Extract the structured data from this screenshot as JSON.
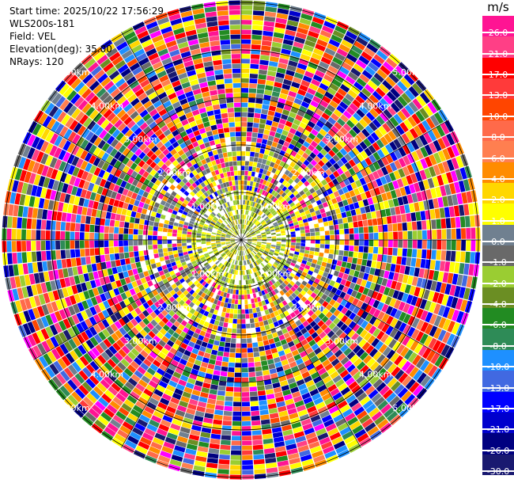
{
  "header": {
    "start_time": "Start time: 2025/10/22 17:56:29",
    "instrument": "WLS200s-181",
    "field": "Field: VEL",
    "elevation": "Elevation(deg): 35.00",
    "nrays": "NRays: 120"
  },
  "range_rings": {
    "inner_labels": [
      "1.00km",
      "1.00km",
      "1.00km",
      "1.00km"
    ],
    "ring2_labels": [
      "2.00km",
      "2.00km",
      "2.00km",
      "2.00km"
    ],
    "ring3_labels": [
      "3.00km",
      "3.00km",
      "3.00km",
      "3.00km"
    ],
    "ring4_labels": [
      "4.00km",
      "4.00km",
      "4.00km",
      "4.00km"
    ],
    "ring5_labels": [
      "5.00km",
      "5.00km",
      "5.00km",
      "5.00km"
    ],
    "ring_km": [
      1,
      2,
      3,
      4,
      5
    ]
  },
  "colorbar": {
    "unit": "m/s",
    "levels": [
      "26.0",
      "21.0",
      "17.0",
      "13.0",
      "10.0",
      "8.0",
      "6.0",
      "4.0",
      "2.0",
      "1.0",
      "0.0",
      "-1.0",
      "-2.0",
      "-4.0",
      "-6.0",
      "-8.0",
      "-10.0",
      "-13.0",
      "-17.0",
      "-21.0",
      "-26.0",
      "-30.0"
    ],
    "colors": [
      "#ff1493",
      "#ff3f86",
      "#ff0000",
      "#ff3a3a",
      "#ff4500",
      "#ff6a4a",
      "#ff7f50",
      "#ff8c00",
      "#ffd700",
      "#ffff00",
      "#708090",
      "#696969",
      "#9acd32",
      "#6b8e23",
      "#228b22",
      "#2e8b57",
      "#1e90ff",
      "#4169e1",
      "#0000ff",
      "#0000cd",
      "#000080",
      "#191970"
    ]
  }
}
